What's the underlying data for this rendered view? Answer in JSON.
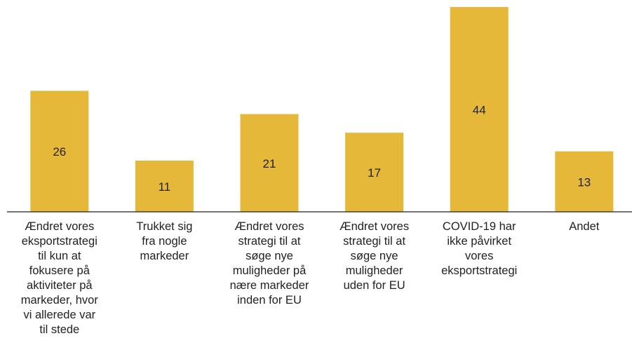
{
  "chart_data": {
    "type": "bar",
    "categories": [
      "Ændret vores\neksportstrategi\ntil kun at\nfokusere på\naktiviteter på\nmarkeder, hvor\nvi allerede var\ntil stede",
      "Trukket sig\nfra nogle\nmarkeder",
      "Ændret vores\nstrategi til at\nsøge nye\nmuligheder på\nnære markeder\ninden for EU",
      "Ændret vores\nstrategi til at\nsøge nye\nmuligheder\nuden for EU",
      "COVID-19 har\nikke påvirket\nvores\neksportstrategi",
      "Andet"
    ],
    "values": [
      26,
      11,
      21,
      17,
      44,
      13
    ],
    "color": "#e6b83a"
  }
}
